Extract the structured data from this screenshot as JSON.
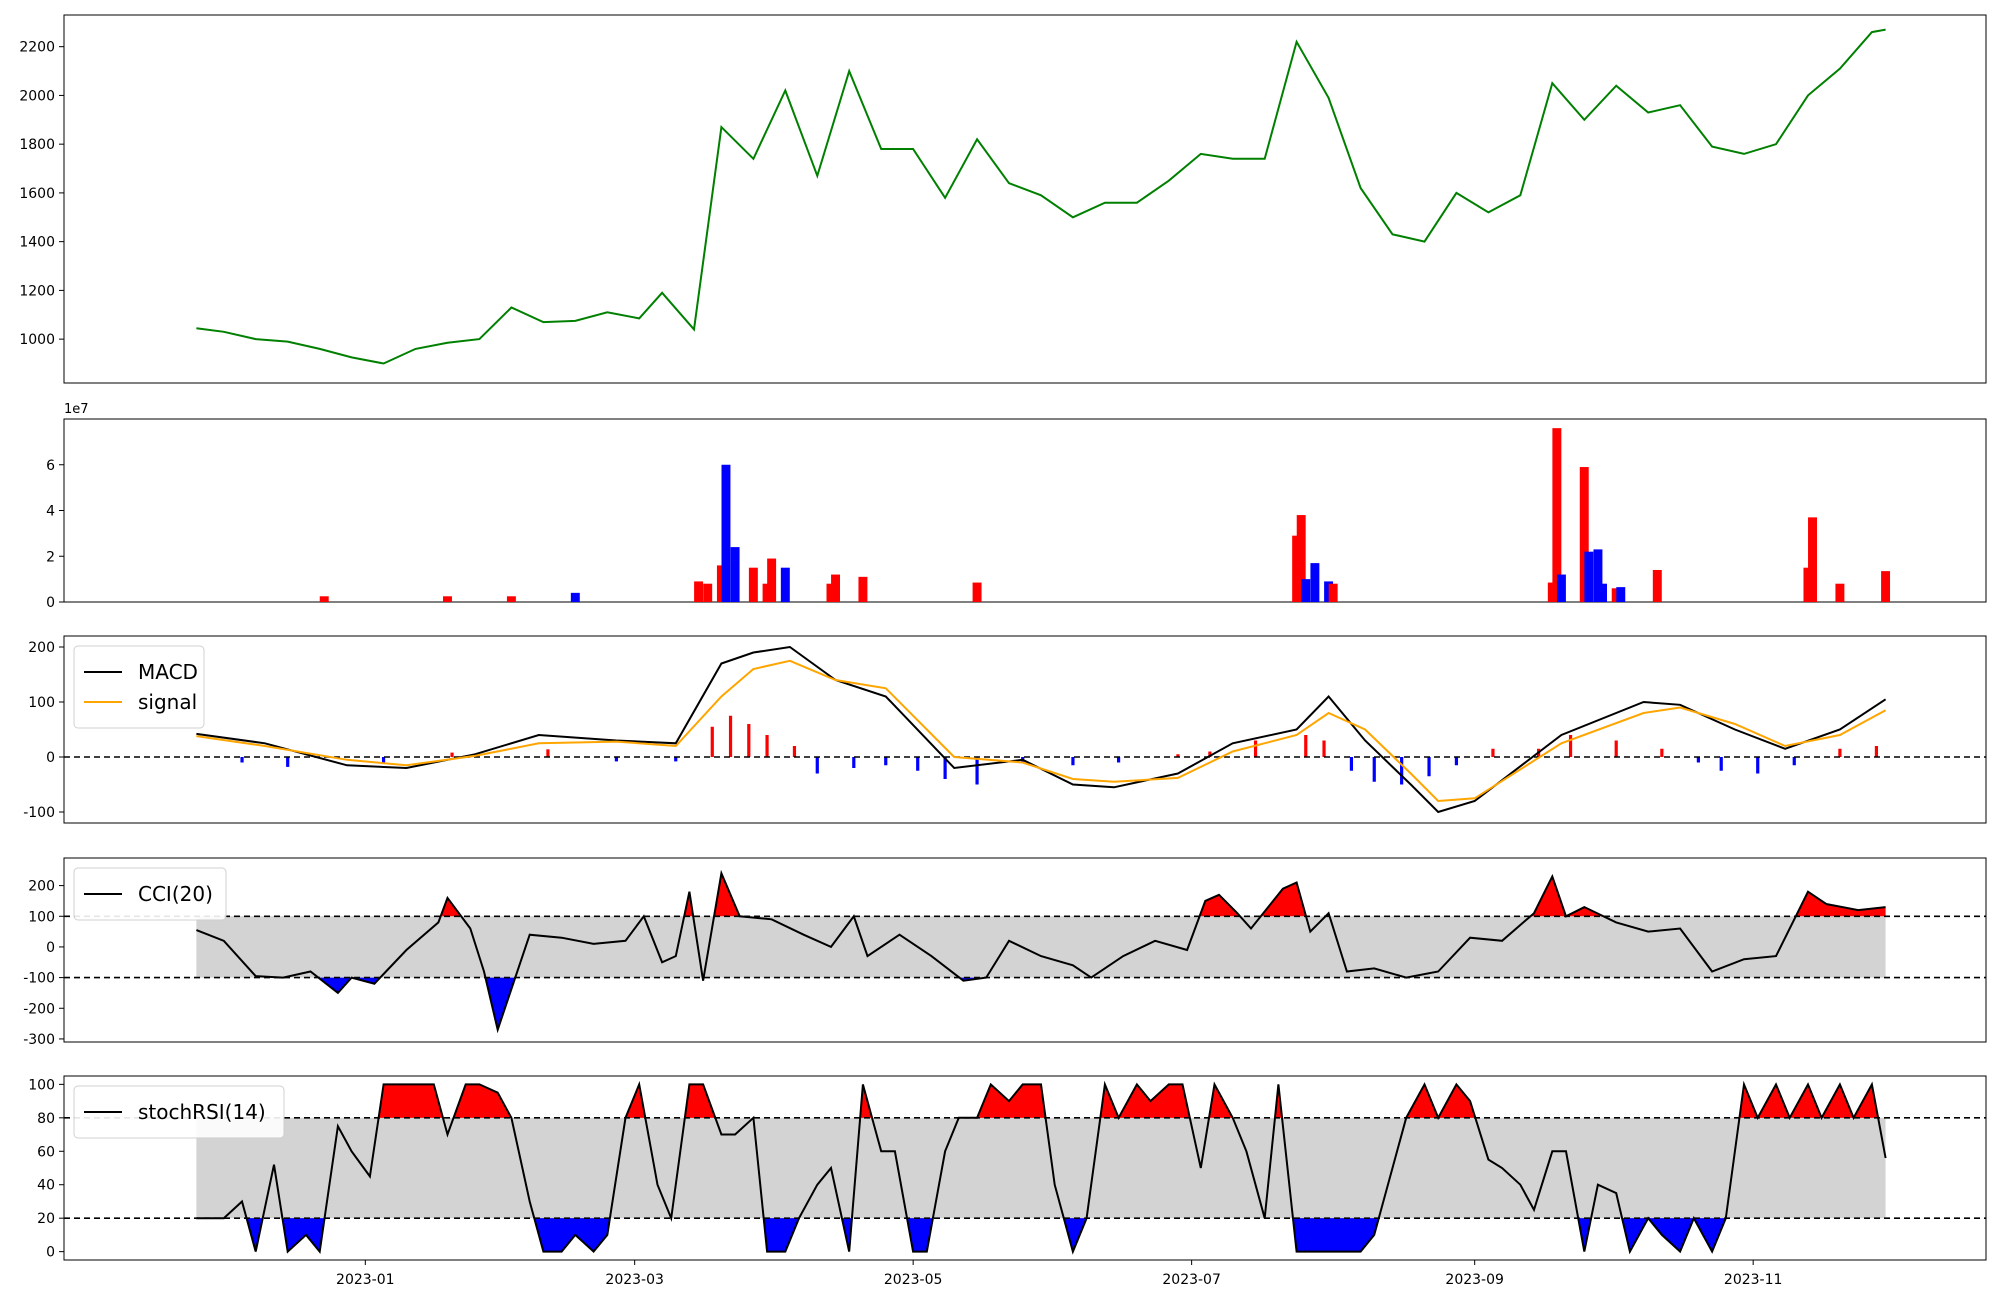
{
  "chart_data": [
    {
      "type": "line",
      "panel": "price",
      "ylim": [
        820,
        2330
      ],
      "yticks": [
        1000,
        1200,
        1400,
        1600,
        1800,
        2000,
        2200
      ],
      "line_color": "#008000",
      "x": [
        "2022-11-25",
        "2022-12-01",
        "2022-12-08",
        "2022-12-15",
        "2022-12-22",
        "2022-12-29",
        "2023-01-05",
        "2023-01-12",
        "2023-01-19",
        "2023-01-26",
        "2023-02-02",
        "2023-02-09",
        "2023-02-16",
        "2023-02-23",
        "2023-03-02",
        "2023-03-07",
        "2023-03-14",
        "2023-03-20",
        "2023-03-27",
        "2023-04-03",
        "2023-04-10",
        "2023-04-17",
        "2023-04-24",
        "2023-05-01",
        "2023-05-08",
        "2023-05-15",
        "2023-05-22",
        "2023-05-29",
        "2023-06-05",
        "2023-06-12",
        "2023-06-19",
        "2023-06-26",
        "2023-07-03",
        "2023-07-10",
        "2023-07-17",
        "2023-07-24",
        "2023-07-31",
        "2023-08-07",
        "2023-08-14",
        "2023-08-21",
        "2023-08-28",
        "2023-09-04",
        "2023-09-11",
        "2023-09-18",
        "2023-09-25",
        "2023-10-02",
        "2023-10-09",
        "2023-10-16",
        "2023-10-23",
        "2023-10-30",
        "2023-11-06",
        "2023-11-13",
        "2023-11-20",
        "2023-11-27",
        "2023-11-30"
      ],
      "y": [
        1045,
        1030,
        1000,
        990,
        960,
        925,
        900,
        960,
        985,
        1000,
        1130,
        1070,
        1075,
        1110,
        1085,
        1190,
        1040,
        1870,
        1740,
        2020,
        1670,
        2100,
        1780,
        1780,
        1580,
        1820,
        1640,
        1590,
        1500,
        1560,
        1560,
        1650,
        1760,
        1740,
        1740,
        2220,
        1990,
        1620,
        1430,
        1400,
        1600,
        1520,
        1590,
        2050,
        1900,
        2040,
        1930,
        1960,
        1790,
        1760,
        1800,
        2000,
        2110,
        2260,
        2270
      ]
    },
    {
      "type": "bar",
      "panel": "volume",
      "scale_label": "1e7",
      "ylim": [
        0,
        8
      ],
      "yticks": [
        0,
        2,
        4,
        6
      ],
      "colors": {
        "up": "#ff0000",
        "down": "#0000ff",
        "neutral": "#000000"
      },
      "x": [
        "2022-12-23",
        "2023-01-19",
        "2023-02-02",
        "2023-02-16",
        "2023-03-15",
        "2023-03-17",
        "2023-03-20",
        "2023-03-21",
        "2023-03-23",
        "2023-03-27",
        "2023-03-30",
        "2023-03-31",
        "2023-04-03",
        "2023-04-13",
        "2023-04-14",
        "2023-04-20",
        "2023-05-15",
        "2023-07-24",
        "2023-07-25",
        "2023-07-26",
        "2023-07-28",
        "2023-07-31",
        "2023-08-01",
        "2023-09-18",
        "2023-09-19",
        "2023-09-20",
        "2023-09-25",
        "2023-09-26",
        "2023-09-28",
        "2023-09-29",
        "2023-10-02",
        "2023-10-03",
        "2023-10-11",
        "2023-11-13",
        "2023-11-14",
        "2023-11-20",
        "2023-11-30"
      ],
      "values": [
        0.25,
        0.25,
        0.25,
        0.4,
        0.9,
        0.8,
        1.6,
        6.0,
        2.4,
        1.5,
        0.8,
        1.9,
        1.5,
        0.8,
        1.2,
        1.1,
        0.85,
        2.9,
        3.8,
        1.0,
        1.7,
        0.9,
        0.8,
        0.85,
        7.6,
        1.2,
        5.9,
        2.2,
        2.3,
        0.8,
        0.6,
        0.65,
        1.4,
        1.5,
        3.7,
        0.8,
        1.35
      ],
      "directions": [
        "up",
        "up",
        "up",
        "down",
        "up",
        "up",
        "up",
        "down",
        "down",
        "up",
        "up",
        "up",
        "down",
        "up",
        "up",
        "up",
        "up",
        "up",
        "up",
        "down",
        "down",
        "down",
        "up",
        "up",
        "up",
        "down",
        "up",
        "down",
        "down",
        "down",
        "up",
        "down",
        "up",
        "up",
        "up",
        "up",
        "up"
      ]
    },
    {
      "type": "line",
      "panel": "macd",
      "ylim": [
        -120,
        220
      ],
      "yticks": [
        -100,
        0,
        100,
        200
      ],
      "legend": {
        "placement": "upper-left",
        "entries": [
          "MACD",
          "signal"
        ]
      },
      "reference_line": 0,
      "series": [
        {
          "name": "MACD",
          "color": "#000000",
          "x": [
            "2022-11-25",
            "2022-12-10",
            "2022-12-28",
            "2023-01-10",
            "2023-01-25",
            "2023-02-08",
            "2023-02-25",
            "2023-03-10",
            "2023-03-20",
            "2023-03-27",
            "2023-04-04",
            "2023-04-14",
            "2023-04-25",
            "2023-05-10",
            "2023-05-25",
            "2023-06-05",
            "2023-06-14",
            "2023-06-28",
            "2023-07-10",
            "2023-07-24",
            "2023-07-31",
            "2023-08-08",
            "2023-08-18",
            "2023-08-24",
            "2023-09-01",
            "2023-09-20",
            "2023-10-08",
            "2023-10-16",
            "2023-10-28",
            "2023-11-08",
            "2023-11-20",
            "2023-11-30"
          ],
          "y": [
            42,
            25,
            -15,
            -20,
            5,
            40,
            30,
            25,
            170,
            190,
            200,
            140,
            110,
            -20,
            -5,
            -50,
            -55,
            -30,
            25,
            50,
            110,
            30,
            -50,
            -100,
            -80,
            40,
            100,
            95,
            50,
            15,
            50,
            105
          ]
        },
        {
          "name": "signal",
          "color": "#ffa500",
          "x": [
            "2022-11-25",
            "2022-12-10",
            "2022-12-28",
            "2023-01-10",
            "2023-01-25",
            "2023-02-08",
            "2023-02-25",
            "2023-03-10",
            "2023-03-20",
            "2023-03-27",
            "2023-04-04",
            "2023-04-14",
            "2023-04-25",
            "2023-05-10",
            "2023-05-25",
            "2023-06-05",
            "2023-06-14",
            "2023-06-28",
            "2023-07-10",
            "2023-07-24",
            "2023-07-31",
            "2023-08-08",
            "2023-08-18",
            "2023-08-24",
            "2023-09-01",
            "2023-09-20",
            "2023-10-08",
            "2023-10-16",
            "2023-10-28",
            "2023-11-08",
            "2023-11-20",
            "2023-11-30"
          ],
          "y": [
            38,
            20,
            -5,
            -15,
            2,
            25,
            28,
            20,
            110,
            160,
            175,
            140,
            125,
            0,
            -10,
            -40,
            -45,
            -38,
            10,
            40,
            80,
            50,
            -30,
            -80,
            -75,
            25,
            80,
            90,
            60,
            20,
            40,
            85
          ]
        }
      ],
      "histogram": {
        "colors": {
          "positive": "#ff0000",
          "negative": "#0000ff"
        },
        "x": [
          "2022-12-05",
          "2022-12-15",
          "2023-01-05",
          "2023-01-20",
          "2023-02-10",
          "2023-02-25",
          "2023-03-10",
          "2023-03-18",
          "2023-03-22",
          "2023-03-26",
          "2023-03-30",
          "2023-04-05",
          "2023-04-10",
          "2023-04-18",
          "2023-04-25",
          "2023-05-02",
          "2023-05-08",
          "2023-05-15",
          "2023-05-25",
          "2023-06-05",
          "2023-06-15",
          "2023-06-28",
          "2023-07-05",
          "2023-07-15",
          "2023-07-26",
          "2023-07-30",
          "2023-08-05",
          "2023-08-10",
          "2023-08-16",
          "2023-08-22",
          "2023-08-28",
          "2023-09-05",
          "2023-09-15",
          "2023-09-22",
          "2023-10-02",
          "2023-10-12",
          "2023-10-20",
          "2023-10-25",
          "2023-11-02",
          "2023-11-10",
          "2023-11-20",
          "2023-11-28"
        ],
        "values": [
          -10,
          -18,
          -12,
          8,
          14,
          -8,
          -8,
          55,
          75,
          60,
          40,
          20,
          -30,
          -20,
          -15,
          -25,
          -40,
          -50,
          -10,
          -15,
          -10,
          5,
          10,
          30,
          40,
          30,
          -25,
          -45,
          -50,
          -35,
          -15,
          15,
          15,
          40,
          30,
          15,
          -10,
          -25,
          -30,
          -15,
          15,
          20
        ]
      }
    },
    {
      "type": "line",
      "panel": "cci",
      "ylim": [
        -310,
        290
      ],
      "yticks": [
        -300,
        -200,
        -100,
        0,
        100,
        200
      ],
      "legend": {
        "placement": "upper-left",
        "entries": [
          "CCI(20)"
        ]
      },
      "thresholds": [
        100,
        -100
      ],
      "band_color": "#d3d3d3",
      "fill_colors": {
        "above": "#ff0000",
        "below": "#0000ff"
      },
      "series": [
        {
          "name": "CCI(20)",
          "color": "#000000",
          "x": [
            "2022-11-25",
            "2022-12-01",
            "2022-12-08",
            "2022-12-14",
            "2022-12-20",
            "2022-12-26",
            "2022-12-29",
            "2023-01-03",
            "2023-01-10",
            "2023-01-17",
            "2023-01-19",
            "2023-01-24",
            "2023-01-27",
            "2023-01-30",
            "2023-02-06",
            "2023-02-13",
            "2023-02-20",
            "2023-02-27",
            "2023-03-03",
            "2023-03-07",
            "2023-03-10",
            "2023-03-13",
            "2023-03-16",
            "2023-03-20",
            "2023-03-24",
            "2023-03-31",
            "2023-04-07",
            "2023-04-13",
            "2023-04-18",
            "2023-04-21",
            "2023-04-28",
            "2023-05-05",
            "2023-05-12",
            "2023-05-17",
            "2023-05-22",
            "2023-05-29",
            "2023-06-05",
            "2023-06-09",
            "2023-06-16",
            "2023-06-23",
            "2023-06-30",
            "2023-07-04",
            "2023-07-07",
            "2023-07-11",
            "2023-07-14",
            "2023-07-21",
            "2023-07-24",
            "2023-07-27",
            "2023-07-31",
            "2023-08-04",
            "2023-08-10",
            "2023-08-17",
            "2023-08-24",
            "2023-08-31",
            "2023-09-07",
            "2023-09-14",
            "2023-09-18",
            "2023-09-21",
            "2023-09-25",
            "2023-10-02",
            "2023-10-09",
            "2023-10-16",
            "2023-10-23",
            "2023-10-30",
            "2023-11-06",
            "2023-11-13",
            "2023-11-17",
            "2023-11-24",
            "2023-11-30"
          ],
          "y": [
            55,
            20,
            -95,
            -100,
            -80,
            -150,
            -100,
            -120,
            -10,
            80,
            160,
            60,
            -80,
            -270,
            40,
            30,
            10,
            20,
            100,
            -50,
            -30,
            180,
            -110,
            240,
            100,
            90,
            40,
            0,
            100,
            -30,
            40,
            -30,
            -110,
            -100,
            20,
            -30,
            -60,
            -100,
            -30,
            20,
            -10,
            150,
            170,
            110,
            60,
            190,
            210,
            50,
            110,
            -80,
            -70,
            -100,
            -80,
            30,
            20,
            110,
            230,
            100,
            130,
            80,
            50,
            60,
            -80,
            -40,
            -30,
            180,
            140,
            120,
            130
          ]
        }
      ]
    },
    {
      "type": "line",
      "panel": "stochrsi",
      "ylim": [
        -5,
        105
      ],
      "yticks": [
        0,
        20,
        40,
        60,
        80,
        100
      ],
      "legend": {
        "placement": "upper-left",
        "entries": [
          "stochRSI(14)"
        ]
      },
      "thresholds": [
        80,
        20
      ],
      "band_color": "#d3d3d3",
      "fill_colors": {
        "above": "#ff0000",
        "below": "#0000ff"
      },
      "series": [
        {
          "name": "stochRSI(14)",
          "color": "#000000",
          "x": [
            "2022-11-25",
            "2022-12-01",
            "2022-12-05",
            "2022-12-08",
            "2022-12-12",
            "2022-12-15",
            "2022-12-19",
            "2022-12-22",
            "2022-12-26",
            "2022-12-29",
            "2023-01-02",
            "2023-01-05",
            "2023-01-09",
            "2023-01-12",
            "2023-01-16",
            "2023-01-19",
            "2023-01-23",
            "2023-01-26",
            "2023-01-30",
            "2023-02-02",
            "2023-02-06",
            "2023-02-09",
            "2023-02-13",
            "2023-02-16",
            "2023-02-20",
            "2023-02-23",
            "2023-02-27",
            "2023-03-02",
            "2023-03-06",
            "2023-03-09",
            "2023-03-13",
            "2023-03-16",
            "2023-03-20",
            "2023-03-23",
            "2023-03-27",
            "2023-03-30",
            "2023-04-03",
            "2023-04-06",
            "2023-04-10",
            "2023-04-13",
            "2023-04-17",
            "2023-04-20",
            "2023-04-24",
            "2023-04-27",
            "2023-05-01",
            "2023-05-04",
            "2023-05-08",
            "2023-05-11",
            "2023-05-15",
            "2023-05-18",
            "2023-05-22",
            "2023-05-25",
            "2023-05-29",
            "2023-06-01",
            "2023-06-05",
            "2023-06-08",
            "2023-06-12",
            "2023-06-15",
            "2023-06-19",
            "2023-06-22",
            "2023-06-26",
            "2023-06-29",
            "2023-07-03",
            "2023-07-06",
            "2023-07-10",
            "2023-07-13",
            "2023-07-17",
            "2023-07-20",
            "2023-07-24",
            "2023-07-27",
            "2023-07-31",
            "2023-08-03",
            "2023-08-07",
            "2023-08-10",
            "2023-08-14",
            "2023-08-17",
            "2023-08-21",
            "2023-08-24",
            "2023-08-28",
            "2023-08-31",
            "2023-09-04",
            "2023-09-07",
            "2023-09-11",
            "2023-09-14",
            "2023-09-18",
            "2023-09-21",
            "2023-09-25",
            "2023-09-28",
            "2023-10-02",
            "2023-10-05",
            "2023-10-09",
            "2023-10-12",
            "2023-10-16",
            "2023-10-19",
            "2023-10-23",
            "2023-10-26",
            "2023-10-30",
            "2023-11-02",
            "2023-11-06",
            "2023-11-09",
            "2023-11-13",
            "2023-11-16",
            "2023-11-20",
            "2023-11-23",
            "2023-11-27",
            "2023-11-30"
          ],
          "y": [
            20,
            20,
            30,
            0,
            52,
            0,
            10,
            0,
            75,
            60,
            45,
            100,
            100,
            100,
            100,
            70,
            100,
            100,
            95,
            80,
            30,
            0,
            0,
            10,
            0,
            10,
            80,
            100,
            40,
            20,
            100,
            100,
            70,
            70,
            80,
            0,
            0,
            20,
            40,
            50,
            0,
            100,
            60,
            60,
            0,
            0,
            60,
            80,
            80,
            100,
            90,
            100,
            100,
            40,
            0,
            20,
            100,
            80,
            100,
            90,
            100,
            100,
            50,
            100,
            80,
            60,
            20,
            100,
            0,
            0,
            0,
            0,
            0,
            10,
            50,
            80,
            100,
            80,
            100,
            90,
            55,
            50,
            40,
            25,
            60,
            60,
            0,
            40,
            35,
            0,
            20,
            10,
            0,
            20,
            0,
            20,
            100,
            80,
            100,
            80,
            100,
            80,
            100,
            80,
            100,
            56
          ]
        }
      ]
    }
  ],
  "xaxis": {
    "range": [
      "2022-10-27",
      "2023-12-22"
    ],
    "ticks": [
      {
        "date": "2023-01-01",
        "label": "2023-01"
      },
      {
        "date": "2023-03-01",
        "label": "2023-03"
      },
      {
        "date": "2023-05-01",
        "label": "2023-05"
      },
      {
        "date": "2023-07-01",
        "label": "2023-07"
      },
      {
        "date": "2023-09-01",
        "label": "2023-09"
      },
      {
        "date": "2023-11-01",
        "label": "2023-11"
      }
    ]
  }
}
